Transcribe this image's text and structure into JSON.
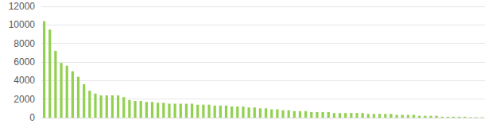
{
  "chart_data": {
    "type": "bar",
    "categories": [
      null,
      null,
      null,
      null,
      null,
      null,
      null,
      null,
      null,
      null,
      null,
      null,
      null,
      null,
      null,
      null,
      null,
      null,
      null,
      null,
      null,
      null,
      null,
      null,
      null,
      null,
      null,
      null,
      null,
      null,
      null,
      null,
      null,
      null,
      null,
      null,
      null,
      null,
      null,
      null,
      null,
      null,
      null,
      null,
      null,
      null,
      null,
      null,
      null,
      null,
      null,
      null,
      null,
      null,
      null,
      null,
      null,
      null,
      null,
      null,
      null,
      null,
      null,
      null,
      null,
      null,
      null,
      null,
      null,
      null,
      null,
      null,
      null,
      null,
      null,
      null,
      null,
      null
    ],
    "values": [
      10400,
      9500,
      7200,
      5900,
      5600,
      5000,
      4400,
      3600,
      2900,
      2600,
      2400,
      2400,
      2400,
      2400,
      2200,
      1900,
      1800,
      1800,
      1700,
      1700,
      1600,
      1600,
      1500,
      1500,
      1500,
      1500,
      1500,
      1400,
      1400,
      1400,
      1300,
      1300,
      1300,
      1200,
      1200,
      1200,
      1100,
      1100,
      1000,
      1000,
      900,
      900,
      800,
      800,
      700,
      700,
      700,
      600,
      600,
      600,
      600,
      500,
      500,
      500,
      500,
      500,
      500,
      400,
      400,
      400,
      400,
      400,
      300,
      300,
      300,
      300,
      200,
      200,
      200,
      200,
      100,
      100,
      100,
      100,
      100,
      50,
      50,
      50
    ],
    "color": "#92d050",
    "ylim": [
      0,
      12000
    ],
    "yticks": [
      0,
      2000,
      4000,
      6000,
      8000,
      10000,
      12000
    ],
    "grid": true,
    "tick_labels": "y"
  }
}
